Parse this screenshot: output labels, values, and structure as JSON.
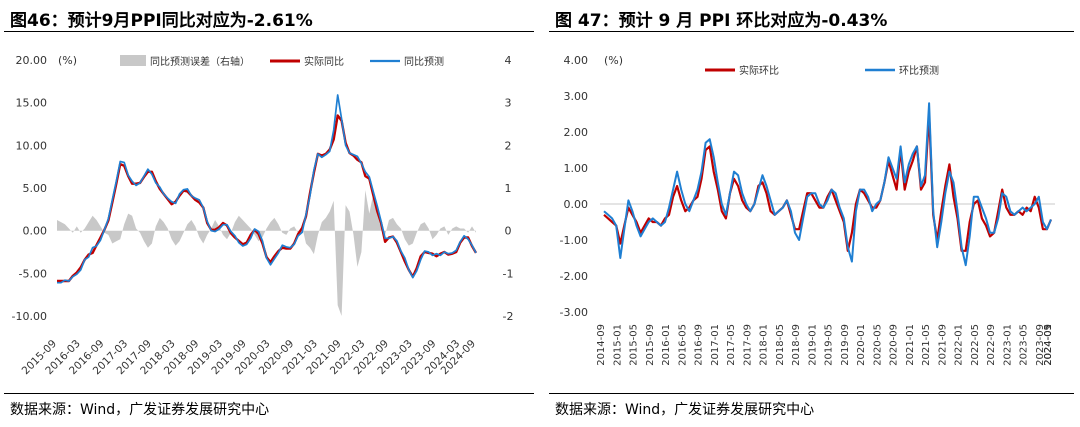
{
  "source_label": "数据来源：Wind，广发证券发展研究中心",
  "chart_data": [
    {
      "type": "line",
      "title": "图46：预计9月PPI同比对应为-2.61%",
      "unit_label": "(%)",
      "ylim": [
        -10,
        20
      ],
      "y_ticks": [
        "20.00",
        "15.00",
        "10.00",
        "5.00",
        "0.00",
        "-5.00",
        "-10.00"
      ],
      "y2lim": [
        -2,
        4
      ],
      "y2_ticks": [
        "4",
        "3",
        "2",
        "1",
        "0",
        "-1",
        "-2"
      ],
      "x_tick_labels": [
        "2015-09",
        "2016-03",
        "2016-09",
        "2017-03",
        "2017-09",
        "2018-03",
        "2018-09",
        "2019-03",
        "2019-09",
        "2020-03",
        "2020-09",
        "2021-03",
        "2021-09",
        "2022-03",
        "2022-09",
        "2023-03",
        "2023-09",
        "2024-03",
        "2024-09"
      ],
      "legend": [
        "同比预测误差（右轴）",
        "实际同比",
        "同比预测"
      ],
      "colors": {
        "error_area": "#c8c8c8",
        "actual": "#c00000",
        "forecast": "#1f7fd2"
      },
      "series": [
        {
          "name": "实际同比",
          "x_start": "2015-09",
          "values": [
            -5.9,
            -5.9,
            -5.9,
            -5.9,
            -5.3,
            -4.9,
            -4.3,
            -3.4,
            -2.8,
            -2.6,
            -1.7,
            -0.8,
            0.1,
            1.2,
            3.3,
            5.5,
            7.8,
            7.6,
            6.4,
            5.5,
            5.5,
            5.6,
            6.3,
            6.9,
            6.9,
            5.8,
            4.9,
            4.3,
            3.7,
            3.1,
            3.4,
            4.1,
            4.7,
            4.6,
            4.1,
            3.6,
            3.3,
            2.7,
            0.9,
            0.1,
            0.1,
            0.4,
            0.9,
            0.6,
            -0.3,
            -0.8,
            -1.2,
            -1.6,
            -1.4,
            -0.5,
            0.1,
            -0.4,
            -1.5,
            -3.1,
            -3.7,
            -3.0,
            -2.4,
            -2.0,
            -2.1,
            -2.1,
            -1.5,
            -0.4,
            0.3,
            1.7,
            4.4,
            6.8,
            9.0,
            8.8,
            9.0,
            9.5,
            10.7,
            13.5,
            12.9,
            10.3,
            9.1,
            8.8,
            8.3,
            8.0,
            6.4,
            6.1,
            4.2,
            2.3,
            0.9,
            -1.3,
            -0.8,
            -0.7,
            -1.4,
            -2.5,
            -3.6,
            -4.6,
            -5.4,
            -4.4,
            -3.0,
            -2.5,
            -2.6,
            -2.7,
            -3.0,
            -2.7,
            -2.5,
            -2.8,
            -2.7,
            -2.5,
            -1.4,
            -0.8,
            -0.8,
            -1.8,
            -2.61
          ]
        },
        {
          "name": "同比预测",
          "x_start": "2015-09",
          "values": [
            -6.1,
            -6.1,
            -5.8,
            -5.9,
            -5.4,
            -5.1,
            -4.6,
            -3.4,
            -3.1,
            -2.0,
            -1.8,
            -1.1,
            0.1,
            1.4,
            3.6,
            5.8,
            8.1,
            8.0,
            6.5,
            5.8,
            5.3,
            5.6,
            6.4,
            7.2,
            6.6,
            5.6,
            5.1,
            4.3,
            3.8,
            3.4,
            3.2,
            4.3,
            4.8,
            4.9,
            4.1,
            3.8,
            3.6,
            2.7,
            1.1,
            0.0,
            -0.1,
            0.2,
            0.7,
            0.7,
            -0.1,
            -0.6,
            -1.4,
            -1.8,
            -1.6,
            -0.9,
            0.2,
            -0.1,
            -1.2,
            -3.2,
            -4.0,
            -3.3,
            -2.6,
            -1.7,
            -1.9,
            -2.0,
            -1.6,
            -0.6,
            -0.2,
            1.9,
            4.1,
            7.1,
            9.0,
            8.6,
            8.9,
            9.3,
            11.8,
            15.9,
            13.1,
            10.0,
            9.1,
            8.9,
            8.7,
            7.9,
            6.9,
            6.3,
            4.6,
            2.9,
            1.1,
            -0.9,
            -0.9,
            -0.7,
            -1.2,
            -2.4,
            -3.2,
            -4.6,
            -5.5,
            -4.7,
            -3.4,
            -2.4,
            -2.5,
            -2.9,
            -2.7,
            -2.9,
            -2.5,
            -2.7,
            -2.6,
            -2.3,
            -1.3,
            -0.6,
            -1.0,
            -1.7,
            -2.61
          ]
        },
        {
          "name": "同比预测误差（右轴）",
          "x_start": "2015-09",
          "axis": "right",
          "values": [
            0.25,
            0.2,
            0.15,
            0.05,
            -0.05,
            0.1,
            -0.05,
            0.05,
            0.2,
            0.35,
            0.25,
            0.1,
            -0.05,
            -0.1,
            -0.3,
            -0.25,
            -0.2,
            0.15,
            0.4,
            0.35,
            0.05,
            -0.05,
            -0.25,
            -0.4,
            -0.3,
            0.1,
            0.3,
            0.2,
            0.05,
            -0.2,
            -0.35,
            -0.25,
            -0.05,
            0.15,
            0.25,
            0.1,
            -0.15,
            -0.3,
            -0.1,
            0.05,
            0.25,
            0.1,
            -0.1,
            -0.2,
            -0.05,
            0.2,
            0.35,
            0.25,
            0.15,
            0.05,
            -0.1,
            -0.25,
            -0.15,
            0.05,
            0.2,
            0.3,
            0.15,
            -0.05,
            -0.1,
            0.05,
            0.1,
            -0.05,
            0.1,
            -0.3,
            -0.4,
            -0.55,
            -0.1,
            0.2,
            0.3,
            0.45,
            0.7,
            -1.75,
            -2.0,
            0.6,
            0.45,
            -0.1,
            -0.85,
            -0.5,
            0.95,
            0.4,
            0.85,
            0.55,
            0.1,
            -0.1,
            0.25,
            0.3,
            0.15,
            0.05,
            -0.2,
            -0.35,
            -0.3,
            -0.05,
            0.15,
            0.2,
            0.05,
            -0.2,
            -0.1,
            0.05,
            0.1,
            -0.1,
            0.05,
            0.1,
            0.05,
            0.05,
            -0.05,
            0.1,
            -0.05
          ]
        }
      ]
    },
    {
      "type": "line",
      "title": "图 47：预计 9 月 PPI 环比对应为-0.43%",
      "unit_label": "(%)",
      "ylim": [
        -3,
        4
      ],
      "y_ticks": [
        "4.00",
        "3.00",
        "2.00",
        "1.00",
        "0.00",
        "-1.00",
        "-2.00",
        "-3.00"
      ],
      "x_tick_labels": [
        "2014-09",
        "2015-01",
        "2015-05",
        "2015-09",
        "2016-01",
        "2016-05",
        "2016-09",
        "2017-01",
        "2017-05",
        "2017-09",
        "2018-01",
        "2018-05",
        "2018-09",
        "2019-01",
        "2019-05",
        "2019-09",
        "2020-01",
        "2020-05",
        "2020-09",
        "2021-01",
        "2021-05",
        "2021-09",
        "2022-01",
        "2022-05",
        "2022-09",
        "2023-01",
        "2023-05",
        "2023-09",
        "2024-01",
        "2024-05",
        "2024-09"
      ],
      "legend": [
        "实际环比",
        "环比预测"
      ],
      "colors": {
        "actual": "#c00000",
        "forecast": "#1f7fd2"
      },
      "series": [
        {
          "name": "实际环比",
          "x_start": "2014-09",
          "values": [
            -0.3,
            -0.4,
            -0.5,
            -0.6,
            -1.1,
            -0.6,
            -0.1,
            -0.3,
            -0.5,
            -0.8,
            -0.6,
            -0.4,
            -0.5,
            -0.5,
            -0.6,
            -0.4,
            -0.3,
            0.2,
            0.5,
            0.1,
            -0.2,
            -0.1,
            0.1,
            0.2,
            0.7,
            1.5,
            1.6,
            0.9,
            0.4,
            -0.2,
            -0.4,
            0.3,
            0.7,
            0.5,
            0.1,
            -0.1,
            -0.2,
            0.0,
            0.5,
            0.6,
            0.3,
            -0.2,
            -0.3,
            -0.2,
            -0.1,
            0.1,
            -0.3,
            -0.7,
            -0.7,
            -0.2,
            0.3,
            0.3,
            0.1,
            -0.1,
            -0.1,
            0.2,
            0.4,
            0.1,
            -0.2,
            -0.5,
            -1.3,
            -0.8,
            0.0,
            0.4,
            0.3,
            0.1,
            -0.1,
            -0.1,
            0.1,
            0.6,
            1.2,
            0.8,
            0.4,
            1.5,
            0.4,
            0.9,
            1.2,
            1.6,
            0.4,
            0.6,
            2.5,
            -0.3,
            -1.0,
            -0.2,
            0.5,
            1.1,
            0.2,
            -0.4,
            -1.3,
            -1.3,
            -0.5,
            0.0,
            0.1,
            -0.4,
            -0.6,
            -0.9,
            -0.8,
            -0.2,
            0.4,
            -0.1,
            -0.3,
            -0.3,
            -0.2,
            -0.3,
            -0.1,
            -0.2,
            0.2,
            -0.1,
            -0.7,
            -0.7,
            -0.43
          ]
        },
        {
          "name": "环比预测",
          "x_start": "2014-09",
          "values": [
            -0.2,
            -0.3,
            -0.4,
            -0.6,
            -1.5,
            -0.7,
            0.1,
            -0.2,
            -0.6,
            -0.9,
            -0.7,
            -0.5,
            -0.4,
            -0.5,
            -0.6,
            -0.5,
            -0.1,
            0.4,
            0.9,
            0.4,
            0.0,
            -0.2,
            0.1,
            0.4,
            0.9,
            1.7,
            1.8,
            1.3,
            0.6,
            0.0,
            -0.3,
            0.3,
            0.9,
            0.8,
            0.3,
            0.0,
            -0.2,
            0.0,
            0.4,
            0.8,
            0.5,
            0.1,
            -0.3,
            -0.2,
            -0.1,
            0.1,
            -0.2,
            -0.8,
            -1.0,
            -0.4,
            0.2,
            0.3,
            0.3,
            0.0,
            -0.1,
            0.1,
            0.4,
            0.3,
            -0.1,
            -0.4,
            -1.2,
            -1.6,
            -0.2,
            0.4,
            0.4,
            0.2,
            -0.2,
            0.0,
            0.1,
            0.6,
            1.3,
            1.0,
            0.7,
            1.6,
            0.6,
            1.1,
            1.4,
            1.6,
            0.5,
            0.8,
            2.8,
            -0.2,
            -1.2,
            -0.5,
            0.3,
            0.9,
            0.6,
            -0.2,
            -1.2,
            -1.7,
            -0.9,
            0.2,
            0.2,
            -0.1,
            -0.4,
            -0.8,
            -0.8,
            -0.4,
            0.3,
            0.2,
            -0.2,
            -0.3,
            -0.2,
            -0.1,
            -0.2,
            -0.1,
            0.0,
            0.2,
            -0.5,
            -0.7,
            -0.43
          ]
        }
      ]
    }
  ]
}
